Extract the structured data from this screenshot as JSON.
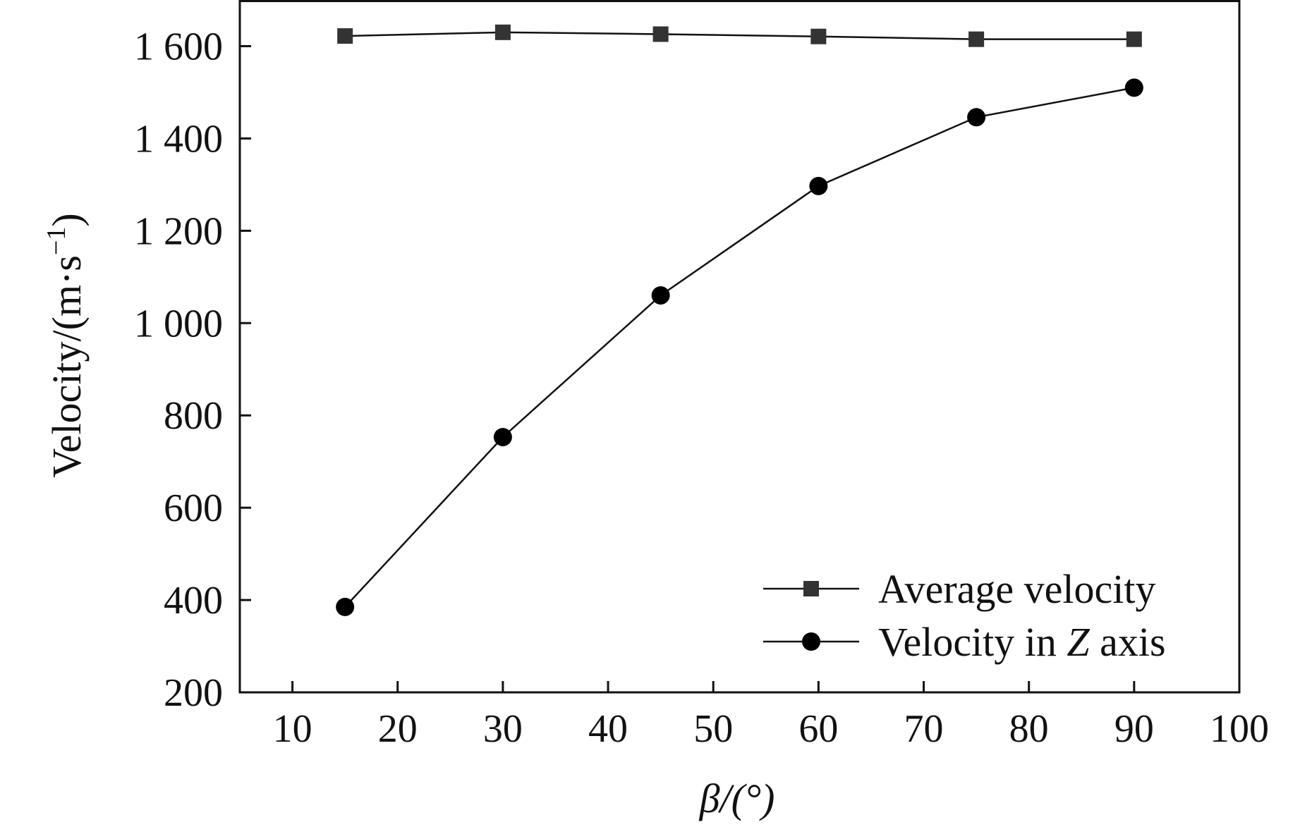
{
  "chart_data": {
    "type": "line",
    "title": "",
    "xlabel": "β/(°)",
    "ylabel": "Velocity/(m·s",
    "ylabel_sup": "−1",
    "ylabel_close": ")",
    "xlim": [
      5,
      100
    ],
    "ylim": [
      200,
      1700
    ],
    "x_ticks": [
      10,
      20,
      30,
      40,
      50,
      60,
      70,
      80,
      90,
      100
    ],
    "y_ticks": [
      200,
      400,
      600,
      800,
      1000,
      1200,
      1400,
      1600
    ],
    "x_tick_labels": [
      "10",
      "20",
      "30",
      "40",
      "50",
      "60",
      "70",
      "80",
      "90",
      "100"
    ],
    "y_tick_labels": [
      "200",
      "400",
      "600",
      "800",
      "1 000",
      "1 200",
      "1 400",
      "1 600"
    ],
    "grid": false,
    "legend_position": "bottom-right",
    "x": [
      15,
      30,
      45,
      60,
      75,
      90
    ],
    "series": [
      {
        "name": "Average velocity",
        "name_parts": [
          "Average velocity"
        ],
        "marker": "square",
        "values": [
          1622,
          1630,
          1626,
          1621,
          1615,
          1615
        ]
      },
      {
        "name": "Velocity in Z axis",
        "name_parts": [
          "Velocity in ",
          "Z",
          " axis"
        ],
        "marker": "circle",
        "values": [
          385,
          753,
          1060,
          1297,
          1446,
          1510
        ]
      }
    ],
    "colors": {
      "axis": "#111111",
      "line": "#111111",
      "square_marker": "#333333",
      "circle_marker": "#000000"
    }
  }
}
